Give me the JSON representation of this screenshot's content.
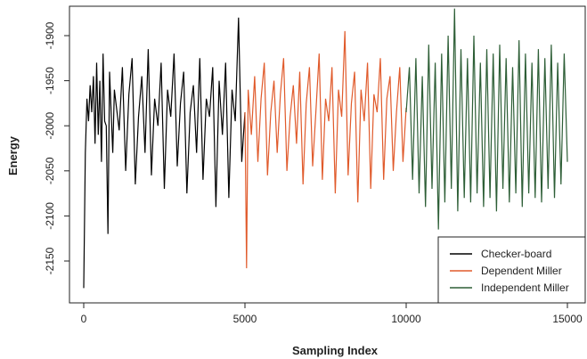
{
  "chart_data": {
    "type": "line",
    "xlabel": "Sampling Index",
    "ylabel": "Energy",
    "xlim": [
      0,
      15000
    ],
    "ylim": [
      -2180,
      -1870
    ],
    "x_ticks": [
      0,
      5000,
      10000,
      15000
    ],
    "x_tick_labels": [
      "0",
      "5000",
      "10000",
      "15000"
    ],
    "y_ticks": [
      -2150,
      -2100,
      -2050,
      -2000,
      -1950,
      -1900
    ],
    "y_tick_labels": [
      "-2150",
      "-2100",
      "-2050",
      "-2000",
      "-1950",
      "-1900"
    ],
    "legend_position": "bottom-right",
    "grid": false,
    "series": [
      {
        "name": "Checker-board",
        "color": "#000000",
        "x": [
          0,
          50,
          100,
          150,
          200,
          250,
          300,
          350,
          400,
          450,
          500,
          550,
          600,
          650,
          700,
          750,
          800,
          850,
          900,
          950,
          1000,
          1100,
          1200,
          1300,
          1400,
          1500,
          1600,
          1700,
          1800,
          1900,
          2000,
          2100,
          2200,
          2300,
          2400,
          2500,
          2600,
          2700,
          2800,
          2900,
          3000,
          3100,
          3200,
          3300,
          3400,
          3500,
          3600,
          3700,
          3800,
          3900,
          4000,
          4100,
          4200,
          4300,
          4400,
          4500,
          4600,
          4700,
          4800,
          4900,
          5000
        ],
        "y": [
          -2180,
          -2030,
          -1970,
          -1995,
          -1955,
          -1985,
          -1945,
          -2020,
          -1930,
          -2010,
          -1950,
          -2040,
          -1920,
          -1995,
          -2000,
          -2120,
          -1940,
          -1985,
          -2030,
          -1960,
          -1975,
          -2005,
          -1935,
          -2050,
          -1965,
          -1925,
          -2065,
          -1990,
          -1945,
          -2030,
          -1915,
          -2055,
          -1970,
          -2000,
          -1930,
          -2070,
          -1960,
          -1990,
          -1920,
          -2045,
          -1975,
          -1940,
          -2075,
          -1985,
          -1955,
          -2030,
          -1925,
          -2060,
          -1970,
          -1990,
          -1935,
          -2090,
          -1950,
          -2010,
          -1930,
          -2080,
          -1960,
          -1995,
          -1880,
          -2040,
          -1985
        ]
      },
      {
        "name": "Dependent Miller",
        "color": "#e05a2b",
        "x": [
          5000,
          5050,
          5100,
          5200,
          5300,
          5400,
          5500,
          5600,
          5700,
          5800,
          5900,
          6000,
          6100,
          6200,
          6300,
          6400,
          6500,
          6600,
          6700,
          6800,
          6900,
          7000,
          7100,
          7200,
          7300,
          7400,
          7500,
          7600,
          7700,
          7800,
          7900,
          8000,
          8100,
          8200,
          8300,
          8400,
          8500,
          8600,
          8700,
          8800,
          8900,
          9000,
          9100,
          9200,
          9300,
          9400,
          9500,
          9600,
          9700,
          9800,
          9900,
          10000
        ],
        "y": [
          -1985,
          -2158,
          -1960,
          -2010,
          -1945,
          -2040,
          -1970,
          -1930,
          -2055,
          -1985,
          -1950,
          -2030,
          -1965,
          -1925,
          -2050,
          -1990,
          -1955,
          -2020,
          -1940,
          -2065,
          -1975,
          -1935,
          -2045,
          -1985,
          -1920,
          -2060,
          -1970,
          -1995,
          -1935,
          -2075,
          -1960,
          -1990,
          -1895,
          -2055,
          -1975,
          -1940,
          -2085,
          -1960,
          -1995,
          -1930,
          -2070,
          -1965,
          -1985,
          -1925,
          -2060,
          -1970,
          -1945,
          -2050,
          -1985,
          -1935,
          -2040,
          -1980
        ]
      },
      {
        "name": "Independent Miller",
        "color": "#2d5e36",
        "x": [
          10000,
          10100,
          10200,
          10300,
          10400,
          10500,
          10600,
          10700,
          10800,
          10900,
          11000,
          11100,
          11200,
          11300,
          11400,
          11500,
          11600,
          11700,
          11800,
          11900,
          12000,
          12100,
          12200,
          12300,
          12400,
          12500,
          12600,
          12700,
          12800,
          12900,
          13000,
          13100,
          13200,
          13300,
          13400,
          13500,
          13600,
          13700,
          13800,
          13900,
          14000,
          14100,
          14200,
          14300,
          14400,
          14500,
          14600,
          14700,
          14800,
          14900,
          15000
        ],
        "y": [
          -1985,
          -1935,
          -2060,
          -1925,
          -2075,
          -1945,
          -2090,
          -1910,
          -2070,
          -1930,
          -2115,
          -1920,
          -2085,
          -1900,
          -2070,
          -1870,
          -2095,
          -1915,
          -2080,
          -1925,
          -2085,
          -1900,
          -2075,
          -1930,
          -2090,
          -1915,
          -2080,
          -1920,
          -2095,
          -1910,
          -2070,
          -1925,
          -2085,
          -1935,
          -2075,
          -1905,
          -2090,
          -1920,
          -2075,
          -1930,
          -2080,
          -1915,
          -2085,
          -1925,
          -2070,
          -1910,
          -2080,
          -1930,
          -2065,
          -1920,
          -2040
        ]
      }
    ]
  }
}
